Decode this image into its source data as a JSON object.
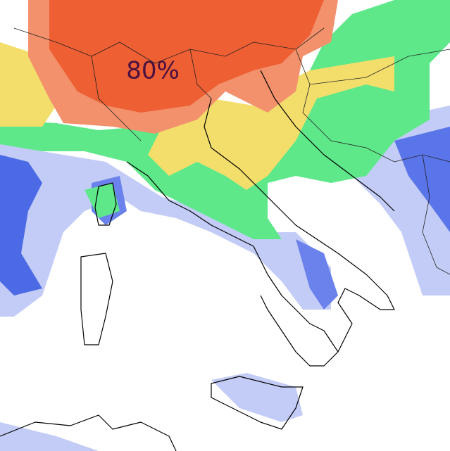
{
  "map": {
    "label": "80%"
  }
}
